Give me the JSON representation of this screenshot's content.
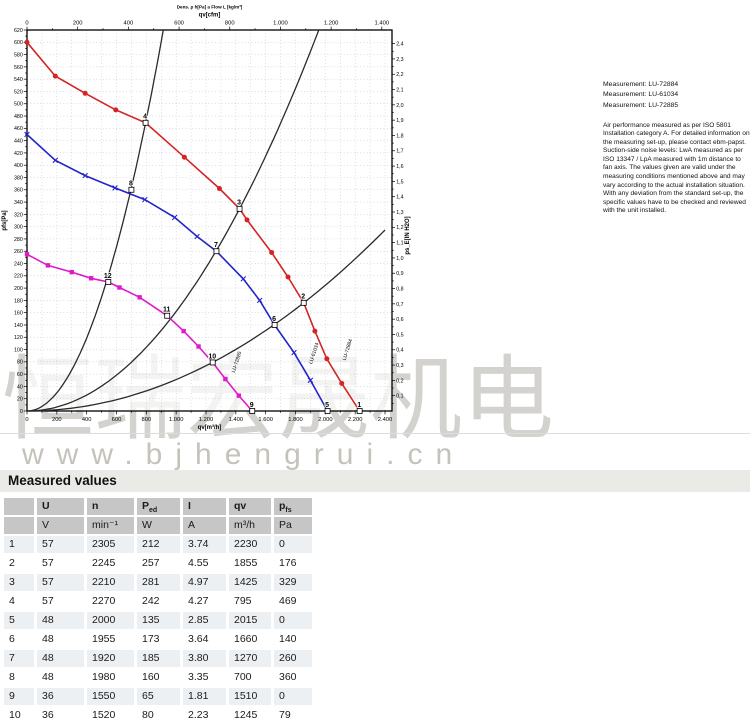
{
  "watermark": {
    "chinese": "恒瑞宏晟机电",
    "url": "www.bjhengrui.cn"
  },
  "side_panel": {
    "measurements": [
      "Measurement: LU-72884",
      "Measurement: LU-61034",
      "Measurement: LU-72885"
    ],
    "note": "Air performance measured as per ISO 5801 Installation category A. For detailed information on the measuring set-up, please contact ebm-papst. Suction-side noise levels: LwA measured as per ISO 13347 / LpA measured with 1m distance to fan axis. The values given are valid under the measuring conditions mentioned above and may vary according to the actual installation situation. With any deviation from the standard set-up, the specific values have to be checked and reviewed with the unit installed."
  },
  "measured_values": {
    "title": "Measured values",
    "columns": [
      {
        "t": ""
      },
      {
        "t": "U"
      },
      {
        "t": "n"
      },
      {
        "t": "P",
        "sub": "ed"
      },
      {
        "t": "I"
      },
      {
        "t": "qv"
      },
      {
        "t": "p",
        "sub": "fs"
      }
    ],
    "units": [
      "",
      "V",
      "min⁻¹",
      "W",
      "A",
      "m³/h",
      "Pa"
    ],
    "rows": [
      [
        "1",
        "57",
        "2305",
        "212",
        "3.74",
        "2230",
        "0"
      ],
      [
        "2",
        "57",
        "2245",
        "257",
        "4.55",
        "1855",
        "176"
      ],
      [
        "3",
        "57",
        "2210",
        "281",
        "4.97",
        "1425",
        "329"
      ],
      [
        "4",
        "57",
        "2270",
        "242",
        "4.27",
        "795",
        "469"
      ],
      [
        "5",
        "48",
        "2000",
        "135",
        "2.85",
        "2015",
        "0"
      ],
      [
        "6",
        "48",
        "1955",
        "173",
        "3.64",
        "1660",
        "140"
      ],
      [
        "7",
        "48",
        "1920",
        "185",
        "3.80",
        "1270",
        "260"
      ],
      [
        "8",
        "48",
        "1980",
        "160",
        "3.35",
        "700",
        "360"
      ],
      [
        "9",
        "36",
        "1550",
        "65",
        "1.81",
        "1510",
        "0"
      ],
      [
        "10",
        "36",
        "1520",
        "80",
        "2.23",
        "1245",
        "79"
      ]
    ]
  },
  "chart_data": {
    "type": "line",
    "title": "Dens. ρ h[Pa] a Flow L [kg/m³]",
    "axes": {
      "bottom": {
        "label": "qv[m³/h]",
        "min": 0,
        "max": 2400,
        "major": 200,
        "minor": 100
      },
      "top": {
        "label": "qv[cfm]",
        "min": 0,
        "max": 1400,
        "major": 200,
        "minor": 100,
        "m3h_per_cfm": 1.699
      },
      "left": {
        "label": "pfs[Pa]",
        "min": 0,
        "max": 620,
        "major": 20,
        "minor": 10
      },
      "right": {
        "label": "ps_E[IN H2O]",
        "min": 0,
        "max": 2.4,
        "major": 0.1,
        "pa_per_unit": 249.089
      }
    },
    "grid": true,
    "series": [
      {
        "id": "LU-72884",
        "voltage": "57 V",
        "color": "#d42424",
        "marker": "circle",
        "points": [
          [
            0,
            600
          ],
          [
            190,
            545
          ],
          [
            390,
            517
          ],
          [
            595,
            490
          ],
          [
            795,
            469
          ],
          [
            1055,
            413
          ],
          [
            1290,
            362
          ],
          [
            1425,
            329
          ],
          [
            1475,
            311
          ],
          [
            1640,
            258
          ],
          [
            1750,
            218
          ],
          [
            1855,
            176
          ],
          [
            1930,
            130
          ],
          [
            2010,
            85
          ],
          [
            2110,
            45
          ],
          [
            2230,
            0
          ]
        ]
      },
      {
        "id": "LU-61034",
        "voltage": "48 V",
        "color": "#2424c8",
        "marker": "x",
        "points": [
          [
            0,
            450
          ],
          [
            190,
            408
          ],
          [
            390,
            383
          ],
          [
            590,
            363
          ],
          [
            790,
            344
          ],
          [
            990,
            315
          ],
          [
            1140,
            284
          ],
          [
            1270,
            260
          ],
          [
            1450,
            215
          ],
          [
            1560,
            180
          ],
          [
            1660,
            140
          ],
          [
            1790,
            95
          ],
          [
            1900,
            50
          ],
          [
            2015,
            0
          ]
        ]
      },
      {
        "id": "LU-72885",
        "voltage": "36 V",
        "color": "#e01ac8",
        "marker": "square",
        "points": [
          [
            0,
            255
          ],
          [
            140,
            237
          ],
          [
            300,
            226
          ],
          [
            430,
            216
          ],
          [
            545,
            210
          ],
          [
            620,
            201
          ],
          [
            755,
            185
          ],
          [
            940,
            155
          ],
          [
            1050,
            130
          ],
          [
            1150,
            105
          ],
          [
            1245,
            79
          ],
          [
            1330,
            52
          ],
          [
            1420,
            25
          ],
          [
            1510,
            0
          ]
        ]
      }
    ],
    "system_curves": [
      {
        "through_q": 795,
        "through_p": 469
      },
      {
        "through_q": 1425,
        "through_p": 329
      },
      {
        "through_q": 1855,
        "through_p": 176
      }
    ],
    "operating_points": [
      {
        "n": "1",
        "q": 2230,
        "p": 0
      },
      {
        "n": "2",
        "q": 1855,
        "p": 176
      },
      {
        "n": "3",
        "q": 1425,
        "p": 329
      },
      {
        "n": "4",
        "q": 795,
        "p": 469
      },
      {
        "n": "5",
        "q": 2015,
        "p": 0
      },
      {
        "n": "6",
        "q": 1660,
        "p": 140
      },
      {
        "n": "7",
        "q": 1270,
        "p": 260
      },
      {
        "n": "8",
        "q": 700,
        "p": 360
      },
      {
        "n": "9",
        "q": 1510,
        "p": 0
      },
      {
        "n": "10",
        "q": 1245,
        "p": 79
      },
      {
        "n": "11",
        "q": 940,
        "p": 155
      },
      {
        "n": "12",
        "q": 545,
        "p": 210
      }
    ],
    "end_labels": [
      {
        "text": "LU-72884",
        "color": "#d42424",
        "q": 2135,
        "p": 82
      },
      {
        "text": "LU-61034",
        "color": "#2424c8",
        "q": 1910,
        "p": 76
      },
      {
        "text": "LU-72885",
        "color": "#e01ac8",
        "q": 1392,
        "p": 62
      }
    ]
  }
}
